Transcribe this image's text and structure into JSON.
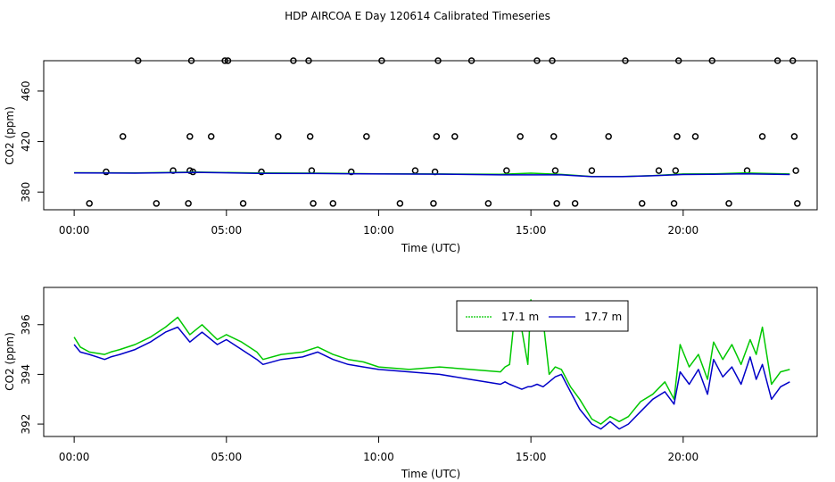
{
  "colors": {
    "green": "#00c800",
    "blue": "#0000c8",
    "axis": "#000000"
  },
  "chart_data": [
    {
      "type": "scatter",
      "title": "HDP AIRCOA E  Day 120614  Calibrated Timeseries",
      "xlabel": "Time (UTC)",
      "ylabel": "CO2 (ppm)",
      "xlim": [
        -1,
        24.4
      ],
      "ylim": [
        366,
        484
      ],
      "xticks": [
        0,
        5,
        10,
        15,
        20
      ],
      "xtick_labels": [
        "00:00",
        "05:00",
        "10:00",
        "15:00",
        "20:00"
      ],
      "yticks": [
        380,
        420,
        460
      ],
      "ytick_labels": [
        "380",
        "420",
        "460"
      ],
      "calibration_points": {
        "x": [
          0.5,
          1.05,
          1.6,
          2.1,
          2.7,
          3.25,
          3.75,
          3.8,
          3.8,
          3.85,
          3.9,
          4.5,
          4.95,
          5.05,
          5.55,
          6.15,
          6.7,
          7.2,
          7.7,
          7.75,
          7.8,
          7.85,
          8.5,
          9.1,
          9.6,
          10.1,
          10.7,
          11.2,
          11.8,
          11.85,
          11.9,
          11.95,
          12.5,
          13.05,
          13.6,
          14.2,
          14.65,
          15.2,
          15.7,
          15.75,
          15.8,
          15.85,
          16.45,
          17.0,
          17.55,
          18.1,
          18.65,
          19.2,
          19.7,
          19.75,
          19.8,
          19.85,
          20.4,
          20.95,
          21.5,
          22.1,
          22.6,
          23.1,
          23.6,
          23.65,
          23.7,
          23.75
        ],
        "y": [
          371,
          396,
          424,
          484,
          371,
          397,
          371,
          397,
          424,
          484,
          396,
          424,
          484,
          484,
          371,
          396,
          424,
          484,
          484,
          424,
          397,
          371,
          371,
          396,
          424,
          484,
          371,
          397,
          371,
          396,
          424,
          484,
          424,
          484,
          371,
          397,
          424,
          484,
          484,
          424,
          397,
          371,
          371,
          397,
          424,
          484,
          371,
          397,
          371,
          397,
          424,
          484,
          424,
          484,
          371,
          397,
          424,
          484,
          484,
          424,
          397,
          371
        ]
      },
      "series": [
        {
          "name": "17.1 m",
          "color": "#00c800",
          "x": [
            0,
            2,
            4,
            6,
            8,
            10,
            12,
            14,
            15,
            16,
            17,
            18,
            19,
            20,
            21,
            22,
            23.5
          ],
          "values": [
            395.3,
            395.2,
            395.8,
            395.1,
            395.0,
            394.4,
            394.3,
            394.1,
            395.0,
            394.0,
            392.3,
            392.3,
            393.0,
            394.3,
            394.5,
            395.1,
            394.3
          ]
        },
        {
          "name": "17.7 m",
          "color": "#0000c8",
          "x": [
            0,
            2,
            4,
            6,
            8,
            10,
            12,
            14,
            15,
            16,
            17,
            18,
            19,
            20,
            21,
            22,
            23.5
          ],
          "values": [
            395.1,
            395.0,
            395.6,
            394.8,
            394.7,
            394.3,
            394.2,
            393.6,
            393.6,
            393.6,
            392.2,
            392.2,
            392.9,
            393.9,
            394.1,
            394.4,
            393.9
          ]
        }
      ]
    },
    {
      "type": "line",
      "title": "",
      "xlabel": "Time (UTC)",
      "ylabel": "CO2 (ppm)",
      "xlim": [
        -1,
        24.4
      ],
      "ylim": [
        391.5,
        397.5
      ],
      "xticks": [
        0,
        5,
        10,
        15,
        20
      ],
      "xtick_labels": [
        "00:00",
        "05:00",
        "10:00",
        "15:00",
        "20:00"
      ],
      "yticks": [
        392,
        394,
        396
      ],
      "ytick_labels": [
        "392",
        "394",
        "396"
      ],
      "legend": {
        "position": "top-center",
        "entries": [
          "17.1 m",
          "17.7 m"
        ]
      },
      "series": [
        {
          "name": "17.1 m",
          "color": "#00c800",
          "x": [
            0,
            0.2,
            0.5,
            1.0,
            1.2,
            1.5,
            2.0,
            2.5,
            3.0,
            3.4,
            3.8,
            4.2,
            4.7,
            5.0,
            5.5,
            6.0,
            6.2,
            6.8,
            7.5,
            8.0,
            8.5,
            9.0,
            9.5,
            10.0,
            11.0,
            12.0,
            13.0,
            14.0,
            14.15,
            14.3,
            14.5,
            14.7,
            14.9,
            15.0,
            15.2,
            15.4,
            15.6,
            15.8,
            16.0,
            16.3,
            16.6,
            17.0,
            17.3,
            17.6,
            17.9,
            18.2,
            18.6,
            19.0,
            19.4,
            19.7,
            19.9,
            20.2,
            20.5,
            20.8,
            21.0,
            21.3,
            21.6,
            21.9,
            22.2,
            22.4,
            22.6,
            22.9,
            23.2,
            23.5
          ],
          "values": [
            395.5,
            395.1,
            394.9,
            394.8,
            394.9,
            395.0,
            395.2,
            395.5,
            395.9,
            396.3,
            395.6,
            396.0,
            395.4,
            395.6,
            395.3,
            394.9,
            394.6,
            394.8,
            394.9,
            395.1,
            394.8,
            394.6,
            394.5,
            394.3,
            394.2,
            394.3,
            394.2,
            394.1,
            394.3,
            394.4,
            396.8,
            395.8,
            394.4,
            397.0,
            395.8,
            396.2,
            394.0,
            394.3,
            394.2,
            393.5,
            393.0,
            392.2,
            392.0,
            392.3,
            392.1,
            392.3,
            392.9,
            393.2,
            393.7,
            393.0,
            395.2,
            394.3,
            394.8,
            393.8,
            395.3,
            394.6,
            395.2,
            394.4,
            395.4,
            394.8,
            395.9,
            393.6,
            394.1,
            394.2
          ]
        },
        {
          "name": "17.7 m",
          "color": "#0000c8",
          "x": [
            0,
            0.2,
            0.5,
            1.0,
            1.2,
            1.5,
            2.0,
            2.5,
            3.0,
            3.4,
            3.8,
            4.2,
            4.7,
            5.0,
            5.5,
            6.0,
            6.2,
            6.8,
            7.5,
            8.0,
            8.5,
            9.0,
            9.5,
            10.0,
            11.0,
            12.0,
            13.0,
            14.0,
            14.15,
            14.3,
            14.5,
            14.7,
            14.9,
            15.0,
            15.2,
            15.4,
            15.6,
            15.8,
            16.0,
            16.3,
            16.6,
            17.0,
            17.3,
            17.6,
            17.9,
            18.2,
            18.6,
            19.0,
            19.4,
            19.7,
            19.9,
            20.2,
            20.5,
            20.8,
            21.0,
            21.3,
            21.6,
            21.9,
            22.2,
            22.4,
            22.6,
            22.9,
            23.2,
            23.5
          ],
          "values": [
            395.2,
            394.9,
            394.8,
            394.6,
            394.7,
            394.8,
            395.0,
            395.3,
            395.7,
            395.9,
            395.3,
            395.7,
            395.2,
            395.4,
            395.0,
            394.6,
            394.4,
            394.6,
            394.7,
            394.9,
            394.6,
            394.4,
            394.3,
            394.2,
            394.1,
            394.0,
            393.8,
            393.6,
            393.7,
            393.6,
            393.5,
            393.4,
            393.5,
            393.5,
            393.6,
            393.5,
            393.7,
            393.9,
            394.0,
            393.3,
            392.6,
            392.0,
            391.8,
            392.1,
            391.8,
            392.0,
            392.5,
            393.0,
            393.3,
            392.8,
            394.1,
            393.6,
            394.2,
            393.2,
            394.6,
            393.9,
            394.3,
            393.6,
            394.7,
            393.8,
            394.4,
            393.0,
            393.5,
            393.7
          ]
        }
      ]
    }
  ]
}
